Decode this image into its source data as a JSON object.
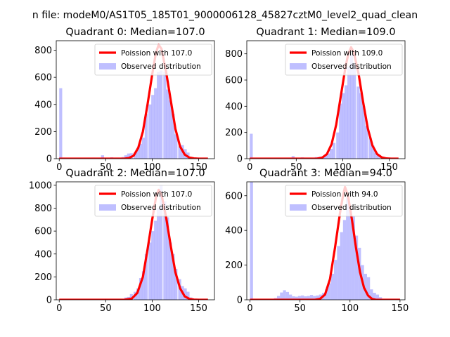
{
  "suptitle": "n file: modeM0/AS1T05_185T01_9000006128_45827cztM0_level2_quad_clean",
  "chart_data": [
    {
      "type": "bar",
      "title": "Quadrant 0: Median=107.0",
      "xlim": [
        -3.2,
        167
      ],
      "ylim": [
        0,
        870
      ],
      "xticks": [
        0,
        50,
        100,
        150
      ],
      "yticks": [
        0,
        200,
        400,
        600,
        800
      ],
      "legend": {
        "placement": "top-right",
        "entries": [
          "Poission with 107.0",
          "Observed distribution"
        ]
      },
      "series": [
        {
          "name": "Observed distribution",
          "kind": "histogram",
          "color": "#8080ff",
          "bin_width": 3.2,
          "bins": [
            [
              0,
              520
            ],
            [
              3.2,
              8
            ],
            [
              35,
              8
            ],
            [
              45,
              25
            ],
            [
              55,
              10
            ],
            [
              61,
              8
            ],
            [
              67,
              12
            ],
            [
              70,
              25
            ],
            [
              73,
              38
            ],
            [
              76,
              40
            ],
            [
              80,
              45
            ],
            [
              83,
              80
            ],
            [
              86,
              110
            ],
            [
              89,
              155
            ],
            [
              92,
              330
            ],
            [
              96,
              400
            ],
            [
              99,
              470
            ],
            [
              102,
              520
            ],
            [
              105,
              640
            ],
            [
              108,
              650
            ],
            [
              112,
              640
            ],
            [
              115,
              510
            ],
            [
              118,
              430
            ],
            [
              121,
              330
            ],
            [
              124,
              180
            ],
            [
              128,
              90
            ],
            [
              131,
              100
            ],
            [
              134,
              70
            ],
            [
              137,
              45
            ],
            [
              140,
              10
            ],
            [
              144,
              5
            ]
          ]
        },
        {
          "name": "Poission with 107.0",
          "kind": "line",
          "color": "#ff0000",
          "points": [
            [
              0,
              0
            ],
            [
              70,
              0
            ],
            [
              75,
              5
            ],
            [
              80,
              22
            ],
            [
              85,
              80
            ],
            [
              90,
              200
            ],
            [
              95,
              400
            ],
            [
              100,
              620
            ],
            [
              104,
              780
            ],
            [
              107,
              840
            ],
            [
              110,
              810
            ],
            [
              115,
              640
            ],
            [
              120,
              430
            ],
            [
              125,
              220
            ],
            [
              130,
              90
            ],
            [
              135,
              30
            ],
            [
              140,
              8
            ],
            [
              145,
              2
            ],
            [
              150,
              0
            ],
            [
              160,
              0
            ]
          ]
        }
      ]
    },
    {
      "type": "bar",
      "title": "Quadrant 1: Median=109.0",
      "xlim": [
        -3.2,
        167
      ],
      "ylim": [
        0,
        900
      ],
      "xticks": [
        0,
        50,
        100,
        150
      ],
      "yticks": [
        0,
        200,
        400,
        600,
        800
      ],
      "legend": {
        "placement": "top-right",
        "entries": [
          "Poission with 109.0",
          "Observed distribution"
        ]
      },
      "series": [
        {
          "name": "Observed distribution",
          "kind": "histogram",
          "color": "#8080ff",
          "bin_width": 3.2,
          "bins": [
            [
              0,
              190
            ],
            [
              35,
              8
            ],
            [
              45,
              20
            ],
            [
              55,
              10
            ],
            [
              64,
              8
            ],
            [
              70,
              12
            ],
            [
              74,
              15
            ],
            [
              77,
              18
            ],
            [
              80,
              25
            ],
            [
              83,
              40
            ],
            [
              86,
              75
            ],
            [
              89,
              120
            ],
            [
              93,
              200
            ],
            [
              96,
              420
            ],
            [
              99,
              500
            ],
            [
              102,
              560
            ],
            [
              105,
              700
            ],
            [
              108,
              790
            ],
            [
              111,
              730
            ],
            [
              115,
              550
            ],
            [
              118,
              500
            ],
            [
              121,
              400
            ],
            [
              124,
              250
            ],
            [
              128,
              160
            ],
            [
              131,
              100
            ],
            [
              134,
              45
            ],
            [
              137,
              25
            ],
            [
              141,
              10
            ],
            [
              144,
              5
            ]
          ]
        },
        {
          "name": "Poission with 109.0",
          "kind": "line",
          "color": "#ff0000",
          "points": [
            [
              0,
              0
            ],
            [
              72,
              0
            ],
            [
              78,
              8
            ],
            [
              83,
              35
            ],
            [
              88,
              110
            ],
            [
              93,
              260
            ],
            [
              98,
              480
            ],
            [
              103,
              700
            ],
            [
              106,
              800
            ],
            [
              109,
              850
            ],
            [
              112,
              810
            ],
            [
              117,
              650
            ],
            [
              122,
              430
            ],
            [
              127,
              230
            ],
            [
              132,
              100
            ],
            [
              137,
              35
            ],
            [
              142,
              10
            ],
            [
              147,
              2
            ],
            [
              152,
              0
            ],
            [
              160,
              0
            ]
          ]
        }
      ]
    },
    {
      "type": "bar",
      "title": "Quadrant 2: Median=107.0",
      "xlim": [
        -3.2,
        167
      ],
      "ylim": [
        0,
        1030
      ],
      "xticks": [
        0,
        50,
        100,
        150
      ],
      "yticks": [
        0,
        200,
        400,
        600,
        800,
        1000
      ],
      "legend": {
        "placement": "top-right",
        "entries": [
          "Poission with 107.0",
          "Observed distribution"
        ]
      },
      "series": [
        {
          "name": "Observed distribution",
          "kind": "histogram",
          "color": "#8080ff",
          "bin_width": 3.2,
          "bins": [
            [
              70,
              20
            ],
            [
              73,
              25
            ],
            [
              76,
              50
            ],
            [
              80,
              70
            ],
            [
              83,
              100
            ],
            [
              86,
              190
            ],
            [
              89,
              250
            ],
            [
              92,
              400
            ],
            [
              96,
              500
            ],
            [
              99,
              600
            ],
            [
              102,
              690
            ],
            [
              105,
              800
            ],
            [
              108,
              1000
            ],
            [
              112,
              860
            ],
            [
              115,
              720
            ],
            [
              118,
              500
            ],
            [
              121,
              400
            ],
            [
              124,
              270
            ],
            [
              128,
              180
            ],
            [
              131,
              120
            ],
            [
              134,
              100
            ],
            [
              137,
              70
            ],
            [
              140,
              20
            ],
            [
              144,
              8
            ]
          ]
        },
        {
          "name": "Poission with 107.0",
          "kind": "line",
          "color": "#ff0000",
          "points": [
            [
              0,
              0
            ],
            [
              70,
              0
            ],
            [
              78,
              10
            ],
            [
              84,
              60
            ],
            [
              90,
              200
            ],
            [
              95,
              440
            ],
            [
              100,
              700
            ],
            [
              104,
              890
            ],
            [
              107,
              960
            ],
            [
              110,
              920
            ],
            [
              115,
              720
            ],
            [
              120,
              470
            ],
            [
              125,
              240
            ],
            [
              130,
              100
            ],
            [
              135,
              30
            ],
            [
              140,
              8
            ],
            [
              145,
              2
            ],
            [
              150,
              0
            ],
            [
              160,
              0
            ]
          ]
        }
      ]
    },
    {
      "type": "bar",
      "title": "Quadrant 3: Median=94.0",
      "xlim": [
        -3.2,
        155
      ],
      "ylim": [
        0,
        680
      ],
      "xticks": [
        0,
        50,
        100,
        150
      ],
      "yticks": [
        0,
        200,
        400,
        600
      ],
      "legend": {
        "placement": "top-right",
        "entries": [
          "Poission with 94.0",
          "Observed distribution"
        ]
      },
      "series": [
        {
          "name": "Observed distribution",
          "kind": "histogram",
          "color": "#8080ff",
          "bin_width": 3,
          "bins": [
            [
              0,
              680
            ],
            [
              24,
              10
            ],
            [
              27,
              22
            ],
            [
              30,
              42
            ],
            [
              33,
              55
            ],
            [
              36,
              45
            ],
            [
              39,
              30
            ],
            [
              42,
              20
            ],
            [
              45,
              18
            ],
            [
              48,
              22
            ],
            [
              51,
              25
            ],
            [
              54,
              20
            ],
            [
              57,
              22
            ],
            [
              60,
              28
            ],
            [
              63,
              22
            ],
            [
              66,
              25
            ],
            [
              69,
              30
            ],
            [
              72,
              40
            ],
            [
              75,
              60
            ],
            [
              78,
              95
            ],
            [
              81,
              150
            ],
            [
              84,
              230
            ],
            [
              87,
              310
            ],
            [
              90,
              390
            ],
            [
              93,
              460
            ],
            [
              96,
              590
            ],
            [
              99,
              510
            ],
            [
              102,
              480
            ],
            [
              105,
              370
            ],
            [
              108,
              300
            ],
            [
              111,
              200
            ],
            [
              114,
              150
            ],
            [
              117,
              130
            ],
            [
              120,
              60
            ],
            [
              123,
              40
            ],
            [
              126,
              30
            ],
            [
              129,
              15
            ]
          ]
        },
        {
          "name": "Poission with 94.0",
          "kind": "line",
          "color": "#ff0000",
          "points": [
            [
              0,
              0
            ],
            [
              65,
              0
            ],
            [
              70,
              5
            ],
            [
              75,
              30
            ],
            [
              80,
              120
            ],
            [
              85,
              300
            ],
            [
              90,
              500
            ],
            [
              93,
              600
            ],
            [
              95,
              650
            ],
            [
              98,
              600
            ],
            [
              102,
              460
            ],
            [
              106,
              300
            ],
            [
              110,
              160
            ],
            [
              114,
              70
            ],
            [
              118,
              25
            ],
            [
              122,
              5
            ],
            [
              126,
              0
            ],
            [
              150,
              0
            ]
          ]
        }
      ]
    }
  ]
}
